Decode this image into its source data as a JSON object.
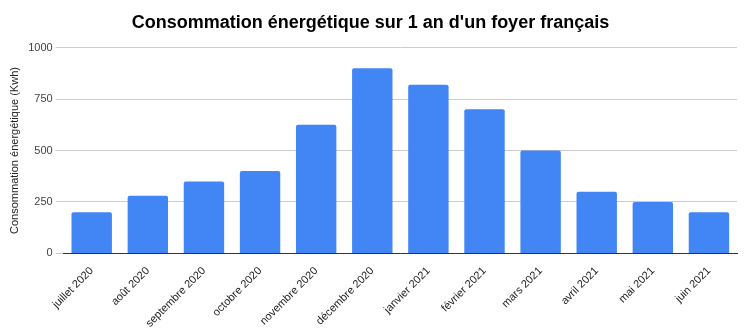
{
  "chart_data": {
    "type": "bar",
    "title": "Consommation énergétique sur 1 an d'un foyer français",
    "y_label": "Consommation énergétique (Kwh)",
    "categories": [
      "juillet 2020",
      "août 2020",
      "septembre 2020",
      "octobre 2020",
      "novembre 2020",
      "décembre 2020",
      "janvier 2021",
      "février 2021",
      "mars 2021",
      "avril 2021",
      "mai 2021",
      "juin 2021"
    ],
    "values": [
      200,
      280,
      350,
      400,
      625,
      900,
      820,
      700,
      500,
      300,
      250,
      200
    ],
    "color": "#4285f4",
    "ylim": [
      0,
      1000
    ],
    "yticks": [
      0,
      250,
      500,
      750,
      1000
    ],
    "grid": true
  }
}
